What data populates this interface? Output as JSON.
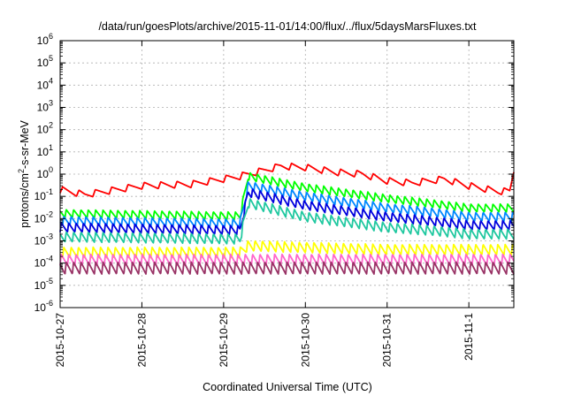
{
  "chart_data": {
    "type": "line",
    "title": "/data/run/goesPlots/archive/2015-11-01/14:00/flux/../flux/5daysMarsFluxes.txt",
    "xlabel": "Coordinated Universal Time (UTC)",
    "ylabel": {
      "prefix": "protons/cm",
      "sup": "2",
      "suffix": "-s-sr-MeV"
    },
    "yscale": "log",
    "ylim": [
      1e-06,
      1000000.0
    ],
    "y_ticks": [
      {
        "base": "10",
        "exp": "-6"
      },
      {
        "base": "10",
        "exp": "-5"
      },
      {
        "base": "10",
        "exp": "-4"
      },
      {
        "base": "10",
        "exp": "-3"
      },
      {
        "base": "10",
        "exp": "-2"
      },
      {
        "base": "10",
        "exp": "-1"
      },
      {
        "base": "10",
        "exp": "0"
      },
      {
        "base": "10",
        "exp": "1"
      },
      {
        "base": "10",
        "exp": "2"
      },
      {
        "base": "10",
        "exp": "3"
      },
      {
        "base": "10",
        "exp": "4"
      },
      {
        "base": "10",
        "exp": "5"
      },
      {
        "base": "10",
        "exp": "6"
      }
    ],
    "x_ticks": [
      "2015-10-27",
      "2015-10-28",
      "2015-10-29",
      "2015-10-30",
      "2015-10-31",
      "2015-11-1"
    ],
    "x_tick_days": [
      0,
      1,
      2,
      3,
      4,
      5
    ],
    "xlim_days": [
      0,
      5.55
    ],
    "grid": true,
    "legend": "none",
    "event_day": 2.23,
    "series": [
      {
        "color": "#ff0000",
        "trend": [
          [
            0,
            0.2
          ],
          [
            0.3,
            0.12
          ],
          [
            1,
            0.3
          ],
          [
            1.6,
            0.35
          ],
          [
            2.2,
            0.8
          ],
          [
            2.5,
            1.5
          ],
          [
            2.7,
            2.3
          ],
          [
            3,
            2.0
          ],
          [
            3.4,
            1.2
          ],
          [
            3.7,
            1.0
          ],
          [
            4.0,
            0.5
          ],
          [
            4.3,
            0.4
          ],
          [
            4.7,
            0.6
          ],
          [
            5.0,
            0.3
          ],
          [
            5.35,
            0.17
          ],
          [
            5.5,
            0.17
          ],
          [
            5.55,
            1.4
          ]
        ],
        "amp": 2.0,
        "period": 0.2
      },
      {
        "color": "#00ff00",
        "trend": [
          [
            0,
            0.017
          ],
          [
            2.2,
            0.013
          ],
          [
            2.3,
            0.8
          ],
          [
            3,
            0.25
          ],
          [
            4,
            0.08
          ],
          [
            4.5,
            0.05
          ],
          [
            5,
            0.03
          ],
          [
            5.55,
            0.03
          ]
        ],
        "amp": 2.3,
        "period": 0.09
      },
      {
        "color": "#0088ff",
        "trend": [
          [
            0,
            0.008
          ],
          [
            2.2,
            0.006
          ],
          [
            2.3,
            0.3
          ],
          [
            3,
            0.1
          ],
          [
            4,
            0.03
          ],
          [
            4.5,
            0.02
          ],
          [
            5,
            0.012
          ],
          [
            5.55,
            0.012
          ]
        ],
        "amp": 2.5,
        "period": 0.09
      },
      {
        "color": "#0000dd",
        "trend": [
          [
            0,
            0.004
          ],
          [
            2.2,
            0.003
          ],
          [
            2.3,
            0.15
          ],
          [
            3,
            0.04
          ],
          [
            4,
            0.012
          ],
          [
            4.5,
            0.008
          ],
          [
            5,
            0.005
          ],
          [
            5.55,
            0.005
          ]
        ],
        "amp": 2.6,
        "period": 0.09
      },
      {
        "color": "#20c8a0",
        "trend": [
          [
            0,
            0.0015
          ],
          [
            2.2,
            0.0012
          ],
          [
            2.3,
            0.05
          ],
          [
            3,
            0.012
          ],
          [
            4,
            0.004
          ],
          [
            4.5,
            0.003
          ],
          [
            5,
            0.002
          ],
          [
            5.55,
            0.002
          ]
        ],
        "amp": 2.8,
        "period": 0.09
      },
      {
        "color": "#ffff00",
        "trend": [
          [
            0,
            0.0003
          ],
          [
            2.2,
            0.0003
          ],
          [
            2.3,
            0.0006
          ],
          [
            3,
            0.0005
          ],
          [
            4,
            0.0004
          ],
          [
            5,
            0.0004
          ],
          [
            5.55,
            0.0004
          ]
        ],
        "amp": 3.0,
        "period": 0.09
      },
      {
        "color": "#ff66cc",
        "trend": [
          [
            0,
            0.00014
          ],
          [
            5.55,
            0.00014
          ]
        ],
        "amp": 3.2,
        "period": 0.09
      },
      {
        "color": "#993366",
        "trend": [
          [
            0,
            6e-05
          ],
          [
            5.55,
            6e-05
          ]
        ],
        "amp": 3.5,
        "period": 0.09
      }
    ]
  }
}
